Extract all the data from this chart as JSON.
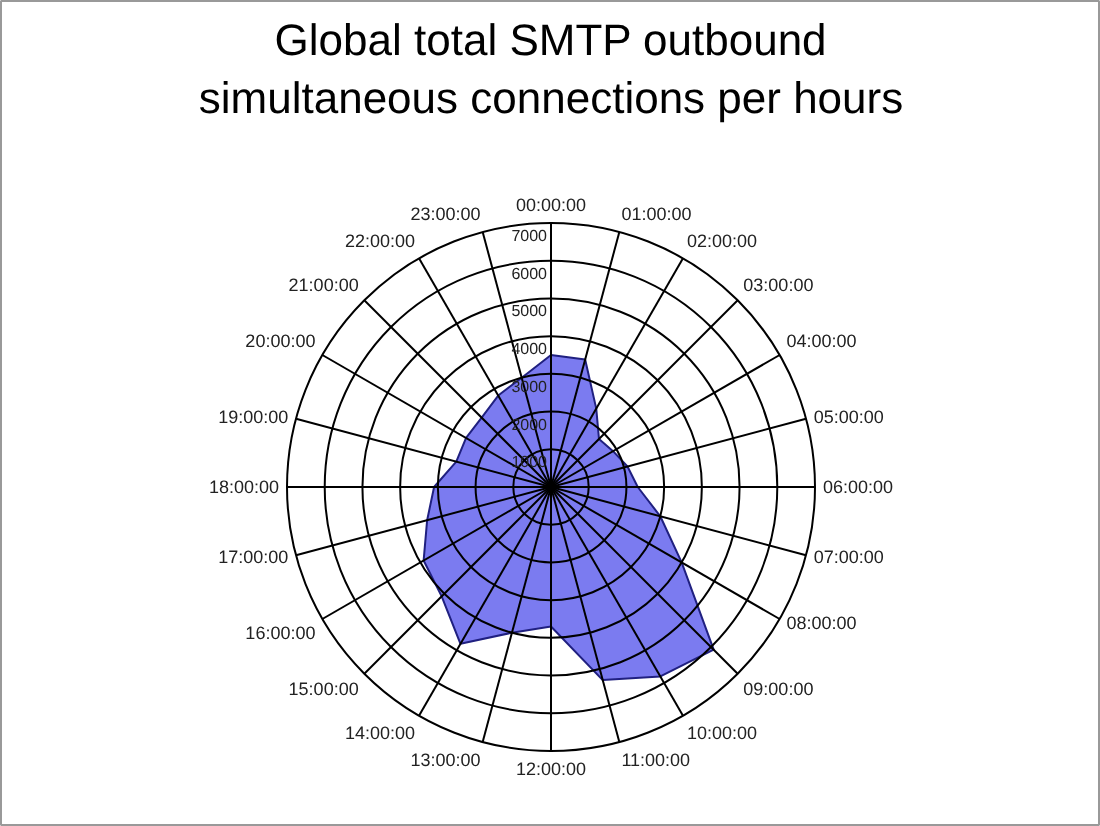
{
  "chart_data": {
    "type": "radar",
    "title": "Global total SMTP outbound simultaneous connections per hours",
    "categories": [
      "00:00:00",
      "01:00:00",
      "02:00:00",
      "03:00:00",
      "04:00:00",
      "05:00:00",
      "06:00:00",
      "07:00:00",
      "08:00:00",
      "09:00:00",
      "10:00:00",
      "11:00:00",
      "12:00:00",
      "13:00:00",
      "14:00:00",
      "15:00:00",
      "16:00:00",
      "17:00:00",
      "18:00:00",
      "19:00:00",
      "20:00:00",
      "21:00:00",
      "22:00:00",
      "23:00:00"
    ],
    "series": [
      {
        "color": "#7b7bf0",
        "values": [
          3500,
          3500,
          2400,
          1800,
          1900,
          2100,
          2300,
          3000,
          4000,
          6100,
          5800,
          5300,
          3700,
          4000,
          4800,
          4100,
          3900,
          3400,
          3100,
          2600,
          2600,
          2600,
          2800,
          3000
        ]
      }
    ],
    "ylim": [
      0,
      7000
    ],
    "yticks": [
      1000,
      2000,
      3000,
      4000,
      5000,
      6000,
      7000
    ],
    "grid": true
  }
}
